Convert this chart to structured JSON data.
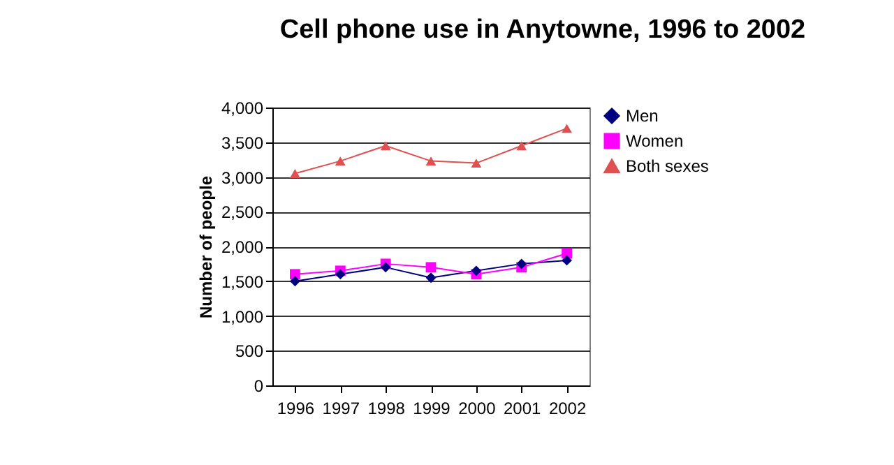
{
  "chart_data": {
    "type": "line",
    "title": "Cell phone use in Anytowne, 1996 to 2002",
    "ylabel": "Number of people",
    "categories": [
      "1996",
      "1997",
      "1998",
      "1999",
      "2000",
      "2001",
      "2002"
    ],
    "series": [
      {
        "name": "Men",
        "color": "#000080",
        "marker": "diamond",
        "values": [
          1500,
          1600,
          1700,
          1550,
          1650,
          1750,
          1800
        ]
      },
      {
        "name": "Women",
        "color": "#ff00ff",
        "marker": "square",
        "values": [
          1600,
          1650,
          1750,
          1700,
          1600,
          1700,
          1900
        ]
      },
      {
        "name": "Both sexes",
        "color": "#e05050",
        "marker": "triangle",
        "values": [
          3050,
          3230,
          3450,
          3230,
          3200,
          3450,
          3700
        ]
      }
    ],
    "ylim": [
      0,
      4000
    ],
    "yticks": [
      {
        "value": 0,
        "label": "0"
      },
      {
        "value": 500,
        "label": "500"
      },
      {
        "value": 1000,
        "label": "1,000"
      },
      {
        "value": 1500,
        "label": "1,500"
      },
      {
        "value": 2000,
        "label": "2,000"
      },
      {
        "value": 2500,
        "label": "2,500"
      },
      {
        "value": 3000,
        "label": "3,000"
      },
      {
        "value": 3500,
        "label": "3,500"
      },
      {
        "value": 4000,
        "label": "4,000"
      }
    ],
    "grid": "y",
    "legend": "right",
    "line_style": "solid"
  }
}
